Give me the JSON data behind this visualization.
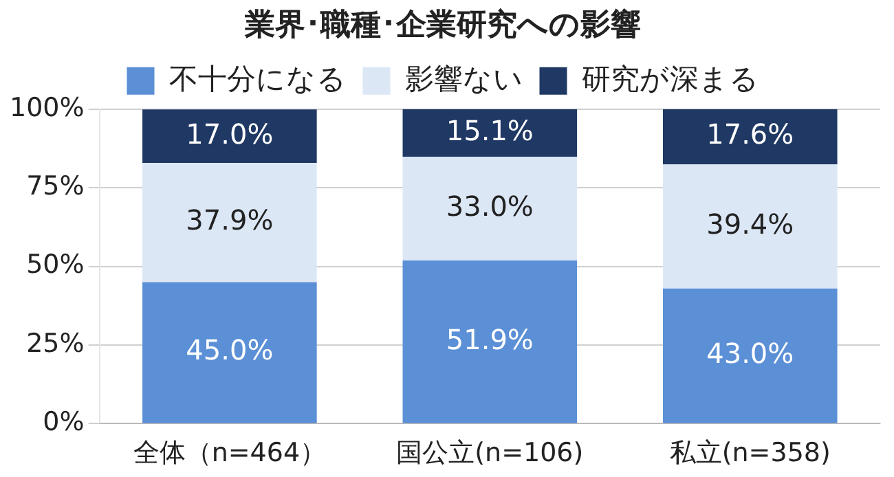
{
  "chart_data": {
    "type": "bar",
    "title": "業界･職種･企業研究への影響",
    "categories": [
      "全体（n=464）",
      "国公立(n=106)",
      "私立(n=358)"
    ],
    "stacked": true,
    "series": [
      {
        "name": "不十分になる",
        "color": "#5b8fd6",
        "values": [
          45.0,
          51.9,
          43.0
        ],
        "value_labels": [
          "45.0%",
          "51.9%",
          "43.0%"
        ]
      },
      {
        "name": "影響ない",
        "color": "#dce7f6",
        "values": [
          37.9,
          33.0,
          39.4
        ],
        "value_labels": [
          "37.9%",
          "33.0%",
          "39.4%"
        ]
      },
      {
        "name": "研究が深まる",
        "color": "#1f3864",
        "values": [
          17.0,
          15.1,
          17.6
        ],
        "value_labels": [
          "17.0%",
          "15.1%",
          "17.6%"
        ]
      }
    ],
    "ylim": [
      0,
      100
    ],
    "yticks": [
      {
        "value": 0,
        "label": "0%"
      },
      {
        "value": 25,
        "label": "25%"
      },
      {
        "value": 50,
        "label": "50%"
      },
      {
        "value": 75,
        "label": "75%"
      },
      {
        "value": 100,
        "label": "100%"
      }
    ],
    "grid": "y",
    "legend": "top"
  }
}
